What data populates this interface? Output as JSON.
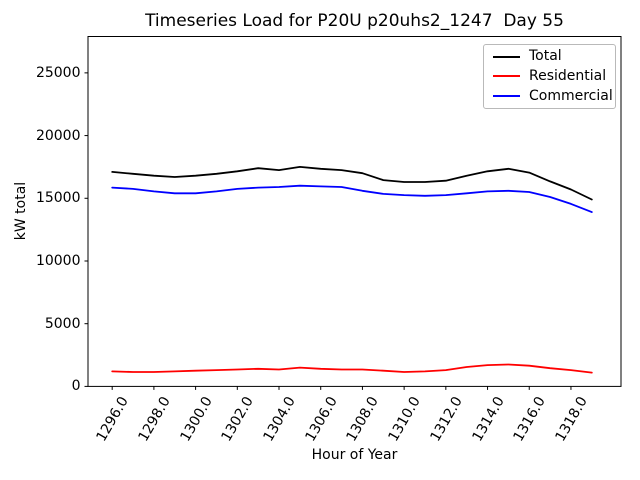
{
  "chart": {
    "title": "Timeseries Load for P20U p20uhs2_1247  Day 55",
    "xlabel": "Hour of Year",
    "ylabel": "kW total"
  },
  "chart_data": {
    "type": "line",
    "title": "Timeseries Load for P20U p20uhs2_1247  Day 55",
    "xlabel": "Hour of Year",
    "ylabel": "kW total",
    "x": [
      1296,
      1297,
      1298,
      1299,
      1300,
      1301,
      1302,
      1303,
      1304,
      1305,
      1306,
      1307,
      1308,
      1309,
      1310,
      1311,
      1312,
      1313,
      1314,
      1315,
      1316,
      1317,
      1318,
      1319
    ],
    "series": [
      {
        "name": "Total",
        "color": "#000000",
        "values": [
          17100,
          16950,
          16800,
          16700,
          16800,
          16950,
          17150,
          17400,
          17250,
          17500,
          17350,
          17250,
          17000,
          16450,
          16300,
          16300,
          16400,
          16800,
          17150,
          17350,
          17050,
          16350,
          15700,
          14900
        ]
      },
      {
        "name": "Residential",
        "color": "#ff0000",
        "values": [
          1200,
          1150,
          1150,
          1200,
          1250,
          1300,
          1350,
          1400,
          1350,
          1500,
          1400,
          1350,
          1350,
          1250,
          1150,
          1200,
          1300,
          1550,
          1700,
          1750,
          1650,
          1450,
          1300,
          1100
        ]
      },
      {
        "name": "Commercial",
        "color": "#0000ff",
        "values": [
          15850,
          15750,
          15550,
          15400,
          15400,
          15550,
          15750,
          15850,
          15900,
          16000,
          15950,
          15900,
          15600,
          15350,
          15250,
          15200,
          15250,
          15400,
          15550,
          15600,
          15500,
          15100,
          14550,
          13900
        ]
      }
    ],
    "xticks": {
      "values": [
        1296,
        1298,
        1300,
        1302,
        1304,
        1306,
        1308,
        1310,
        1312,
        1314,
        1316,
        1318
      ],
      "labels": [
        "1296.0",
        "1298.0",
        "1300.0",
        "1302.0",
        "1304.0",
        "1306.0",
        "1308.0",
        "1310.0",
        "1312.0",
        "1314.0",
        "1316.0",
        "1318.0"
      ]
    },
    "yticks": {
      "values": [
        0,
        5000,
        10000,
        15000,
        20000,
        25000
      ],
      "labels": [
        "0",
        "5000",
        "10000",
        "15000",
        "20000",
        "25000"
      ]
    },
    "xlim": [
      1294.84,
      1320.4
    ],
    "ylim": [
      0,
      27900
    ],
    "grid": false,
    "legend_position": "upper right"
  }
}
